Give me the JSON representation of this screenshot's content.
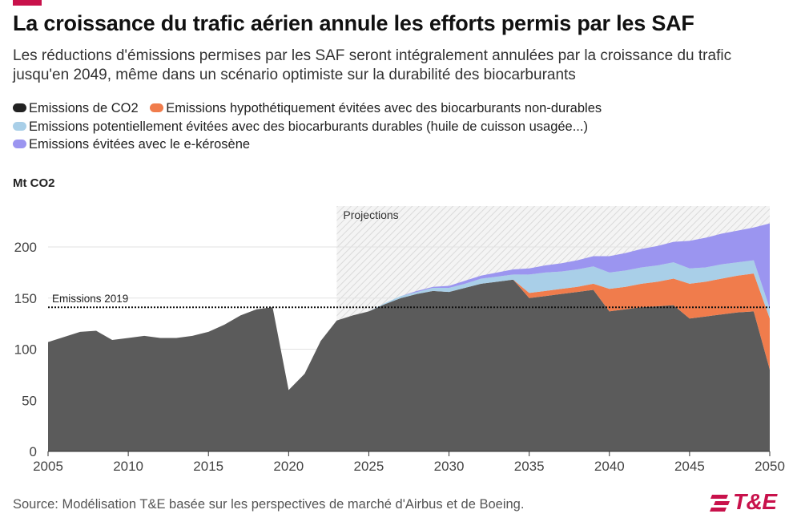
{
  "header": {
    "title": "La croissance du trafic aérien annule les efforts permis par les SAF",
    "subtitle": "Les réductions d'émissions permises par les SAF seront intégralement annulées par la croissance du trafic jusqu'en 2049, même dans un scénario optimiste sur la durabilité des biocarburants",
    "accent_color": "#c8114b"
  },
  "footer": {
    "source": "Source: Modélisation T&E basée sur les perspectives de marché d'Airbus et de Boeing.",
    "logo_text": "T&E"
  },
  "chart_data": {
    "type": "area",
    "stacked": true,
    "ylabel": "Mt CO2",
    "xlim": [
      2005,
      2050
    ],
    "ylim": [
      0,
      240
    ],
    "x_ticks": [
      2005,
      2010,
      2015,
      2020,
      2025,
      2030,
      2035,
      2040,
      2045,
      2050
    ],
    "y_ticks": [
      0,
      50,
      100,
      150,
      200
    ],
    "grid": "horizontal",
    "legend_position": "top-left",
    "x": [
      2005,
      2006,
      2007,
      2008,
      2009,
      2010,
      2011,
      2012,
      2013,
      2014,
      2015,
      2016,
      2017,
      2018,
      2019,
      2020,
      2021,
      2022,
      2023,
      2024,
      2025,
      2026,
      2027,
      2028,
      2029,
      2030,
      2031,
      2032,
      2033,
      2034,
      2035,
      2036,
      2037,
      2038,
      2039,
      2040,
      2041,
      2042,
      2043,
      2044,
      2045,
      2046,
      2047,
      2048,
      2049,
      2050
    ],
    "series": [
      {
        "name": "Emissions de CO2",
        "color": "#5b5b5b",
        "values": [
          107,
          112,
          117,
          118,
          109,
          111,
          113,
          111,
          111,
          113,
          117,
          124,
          133,
          139,
          141,
          60,
          76,
          108,
          128,
          133,
          137,
          144,
          150,
          154,
          157,
          156,
          160,
          164,
          166,
          168,
          150,
          152,
          154,
          156,
          158,
          137,
          139,
          141,
          142,
          143,
          130,
          132,
          134,
          136,
          137,
          80
        ]
      },
      {
        "name": "Emissions hypothétiquement évitées avec des biocarburants non-durables",
        "color": "#f07c4c",
        "values": [
          0,
          0,
          0,
          0,
          0,
          0,
          0,
          0,
          0,
          0,
          0,
          0,
          0,
          0,
          0,
          0,
          0,
          0,
          0,
          0,
          0,
          0,
          0,
          0,
          0,
          0,
          0,
          0,
          0,
          0,
          5,
          5,
          5,
          5,
          6,
          22,
          22,
          23,
          24,
          26,
          34,
          34,
          35,
          36,
          37,
          50
        ]
      },
      {
        "name": "Emissions potentiellement évitées avec des biocarburants durables (huile de cuisson usagée...)",
        "color": "#a9cfe8",
        "values": [
          0,
          0,
          0,
          0,
          0,
          0,
          0,
          0,
          0,
          0,
          0,
          0,
          0,
          0,
          0,
          0,
          0,
          0,
          0,
          0,
          0,
          1,
          2,
          2,
          3,
          4,
          4,
          5,
          5,
          5,
          18,
          18,
          17,
          17,
          17,
          16,
          16,
          16,
          16,
          16,
          15,
          14,
          14,
          13,
          13,
          10
        ]
      },
      {
        "name": "Emissions évitées avec le e-kérosène",
        "color": "#9b95f0",
        "values": [
          0,
          0,
          0,
          0,
          0,
          0,
          0,
          0,
          0,
          0,
          0,
          0,
          0,
          0,
          0,
          0,
          0,
          0,
          0,
          0,
          0,
          0,
          0,
          1,
          1,
          2,
          3,
          3,
          4,
          5,
          6,
          7,
          8,
          9,
          10,
          16,
          17,
          18,
          19,
          20,
          27,
          29,
          30,
          31,
          32,
          83
        ]
      }
    ],
    "annotations": [
      {
        "type": "hline",
        "y": 141,
        "label": "Emissions 2019"
      },
      {
        "type": "shaded-region",
        "x_from": 2023,
        "x_to": 2050,
        "label": "Projections"
      }
    ]
  }
}
